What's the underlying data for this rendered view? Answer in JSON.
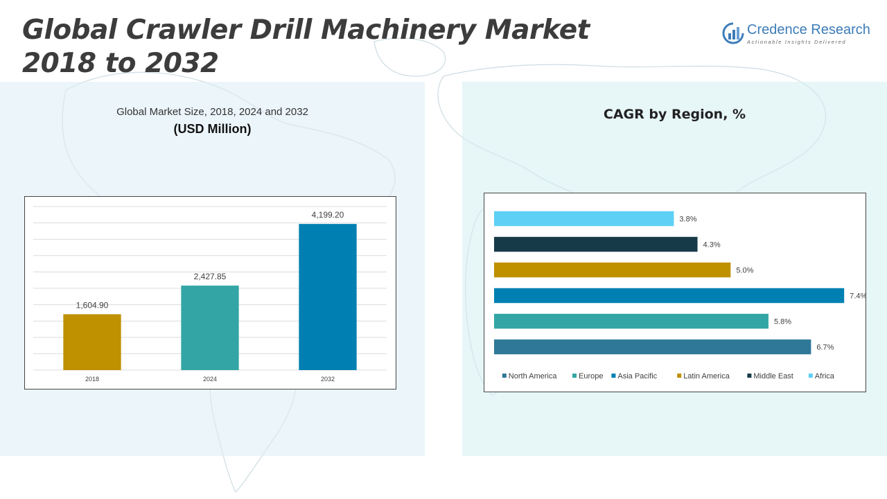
{
  "header": {
    "title_line1": "Global Crawler Drill Machinery Market",
    "title_line2": "2018 to 2032"
  },
  "logo": {
    "name": "Credence Research",
    "tagline": "Actionable Insights Delivered"
  },
  "left_panel": {
    "subtitle": "Global Market Size, 2018, 2024 and 2032",
    "unit": "(USD Million)"
  },
  "right_panel": {
    "title": "CAGR by Region, %"
  },
  "chart_data": [
    {
      "type": "bar",
      "title": "Global Market Size, 2018, 2024 and 2032",
      "ylabel": "(USD Million)",
      "categories": [
        "2018",
        "2024",
        "2032"
      ],
      "values": [
        1604.9,
        2427.85,
        4199.2
      ],
      "value_labels": [
        "1,604.90",
        "2,427.85",
        "4,199.20"
      ],
      "colors": [
        "#bf9000",
        "#34a5a5",
        "#0080b2"
      ],
      "ylim": [
        0,
        4700
      ],
      "grid": true
    },
    {
      "type": "bar",
      "orientation": "horizontal",
      "title": "CAGR by Region, %",
      "categories": [
        "Africa",
        "Middle East",
        "Latin America",
        "Asia Pacific",
        "Europe",
        "North America"
      ],
      "values": [
        3.8,
        4.3,
        5.0,
        7.4,
        5.8,
        6.7
      ],
      "value_labels": [
        "3.8%",
        "4.3%",
        "5.0%",
        "7.4%",
        "5.8%",
        "6.7%"
      ],
      "colors": [
        "#5fd0f5",
        "#173a48",
        "#bf9000",
        "#0080b2",
        "#34a5a5",
        "#2f7898"
      ],
      "xlim": [
        0,
        7.5
      ],
      "grid": false,
      "legend": {
        "placement": "bottom",
        "entries": [
          "North America",
          "Europe",
          "Asia Pacific",
          "Latin America",
          "Middle East",
          "Africa"
        ],
        "colors": [
          "#2f7898",
          "#34a5a5",
          "#0080b2",
          "#bf9000",
          "#173a48",
          "#5fd0f5"
        ]
      }
    }
  ]
}
